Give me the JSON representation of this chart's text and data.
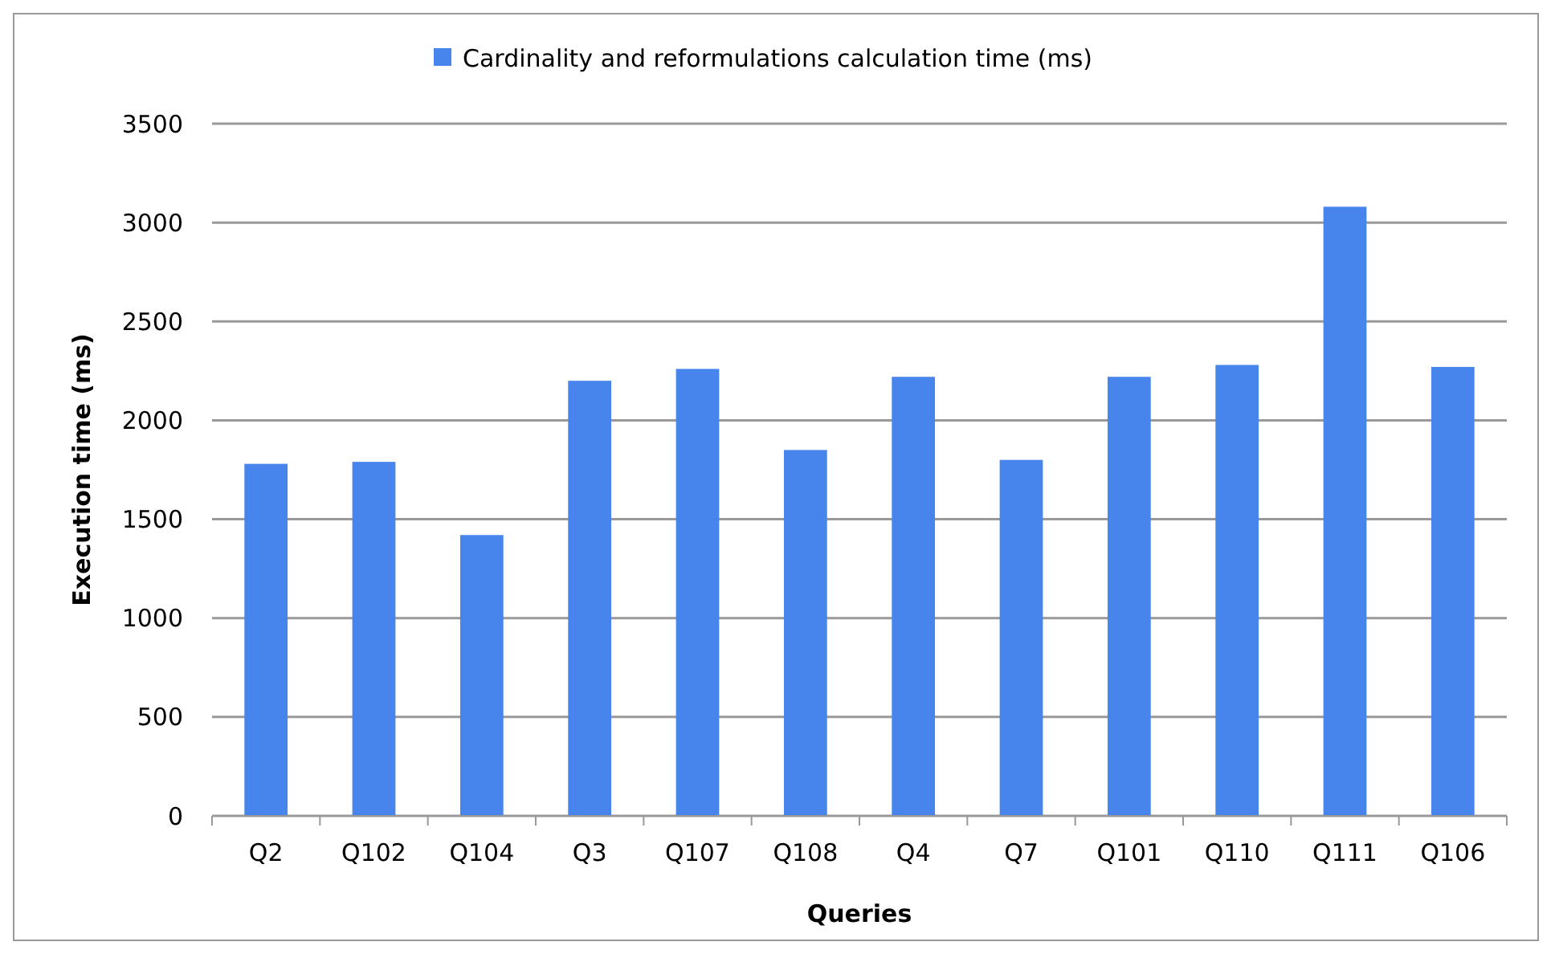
{
  "chart_data": {
    "type": "bar",
    "categories": [
      "Q2",
      "Q102",
      "Q104",
      "Q3",
      "Q107",
      "Q108",
      "Q4",
      "Q7",
      "Q101",
      "Q110",
      "Q111",
      "Q106"
    ],
    "series": [
      {
        "name": "Cardinality and reformulations calculation time (ms)",
        "color": "#4785ec",
        "values": [
          1780,
          1790,
          1420,
          2200,
          2260,
          1850,
          2220,
          1800,
          2220,
          2280,
          3080,
          2270
        ]
      }
    ],
    "xlabel": "Queries",
    "ylabel": "Execution time (ms)",
    "ylim": [
      0,
      3500
    ],
    "yticks": [
      0,
      500,
      1000,
      1500,
      2000,
      2500,
      3000,
      3500
    ],
    "grid": "y",
    "legend": "top"
  }
}
